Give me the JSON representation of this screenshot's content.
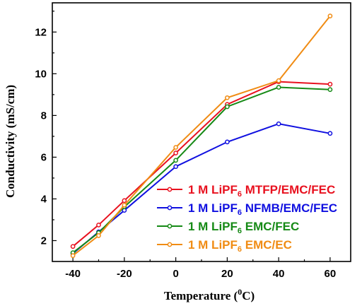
{
  "chart_data": {
    "type": "line",
    "x": [
      -40,
      -30,
      -20,
      0,
      20,
      40,
      60
    ],
    "xlabel": "Temperature (",
    "xlabel_sup": "0",
    "xlabel_suffix": "C)",
    "ylabel": "Conductivity (mS/cm)",
    "xlim": [
      -48,
      68
    ],
    "ylim": [
      1,
      13.4
    ],
    "xticks": [
      -40,
      -20,
      0,
      20,
      40,
      60
    ],
    "yticks": [
      2,
      4,
      6,
      8,
      10,
      12
    ],
    "xtick_labels": [
      "-40",
      "-20",
      "0",
      "20",
      "40",
      "60"
    ],
    "ytick_labels": [
      "2",
      "4",
      "6",
      "8",
      "10",
      "12"
    ],
    "grid": false,
    "legend_position": "center-right",
    "series": [
      {
        "name": "1 M LiPF6 MTFP/EMC/FEC",
        "name_prefix": "1 M LiPF",
        "name_sub": "6",
        "name_suffix": " MTFP/EMC/FEC",
        "color": "#e8111f",
        "values": [
          1.72,
          2.75,
          3.92,
          6.2,
          8.53,
          9.62,
          9.5
        ]
      },
      {
        "name": "1 M LiPF6 NFMB/EMC/FEC",
        "name_prefix": "1 M LiPF",
        "name_sub": "6",
        "name_suffix": " NFMB/EMC/FEC",
        "color": "#1010e0",
        "values": [
          1.38,
          2.42,
          3.45,
          5.55,
          6.73,
          7.6,
          7.14
        ]
      },
      {
        "name": "1 M LiPF6 EMC/FEC",
        "name_prefix": "1 M LiPF",
        "name_sub": "6",
        "name_suffix": " EMC/FEC",
        "color": "#168a16",
        "values": [
          1.42,
          2.38,
          3.62,
          5.85,
          8.42,
          9.35,
          9.24
        ]
      },
      {
        "name": "1 M LiPF6 EMC/EC",
        "name_prefix": "1 M LiPF",
        "name_sub": "6",
        "name_suffix": " EMC/EC",
        "color": "#f08c14",
        "values": [
          1.28,
          2.24,
          3.7,
          6.47,
          8.85,
          9.67,
          12.77
        ]
      }
    ]
  }
}
